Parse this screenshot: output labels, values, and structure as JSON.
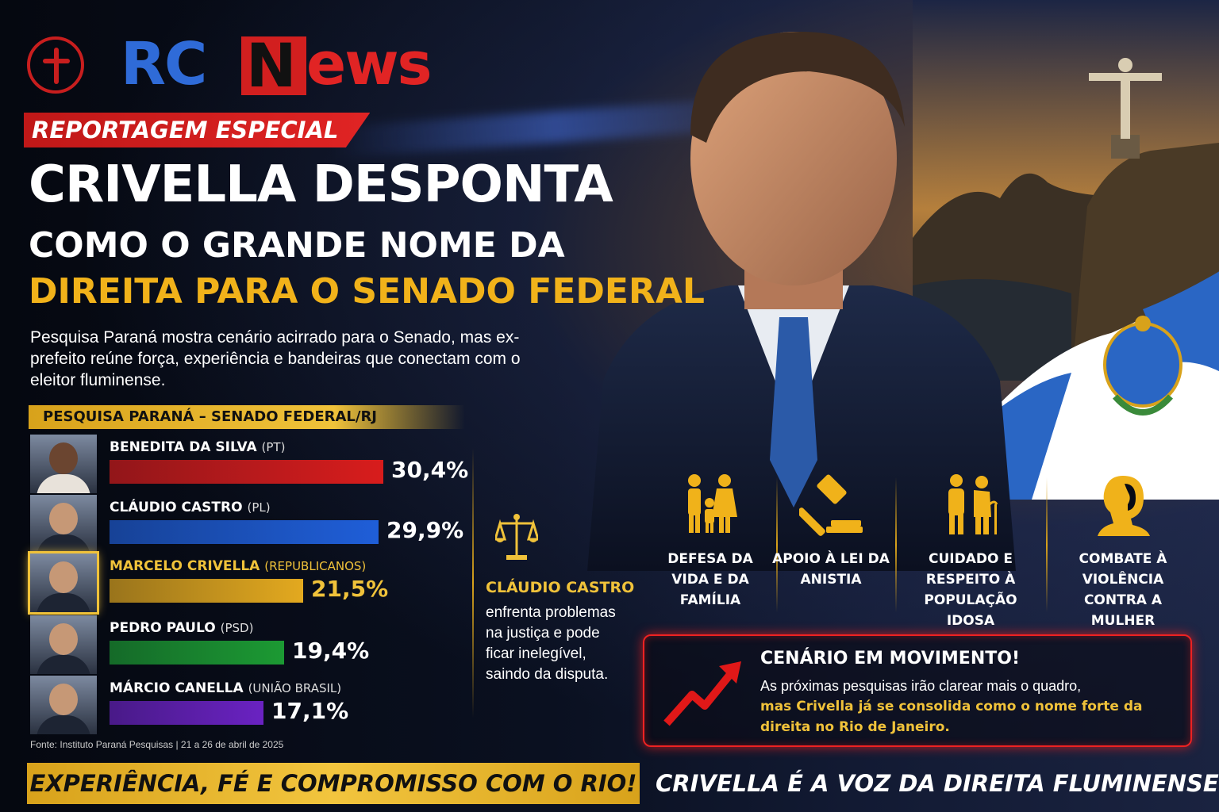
{
  "logo": {
    "rc": "RC",
    "n": "N",
    "ews": "ews"
  },
  "tagline": "REPORTAGEM ESPECIAL",
  "headline": {
    "line1": "CRIVELLA DESPONTA",
    "line2": "COMO O GRANDE NOME DA",
    "line3": "DIREITA PARA O SENADO FEDERAL"
  },
  "subtitle": "Pesquisa Paraná mostra cenário acirrado para o Senado, mas ex-prefeito reúne força, experiência e bandeiras que conectam com o eleitor fluminense.",
  "poll": {
    "header": "PESQUISA PARANÁ – SENADO FEDERAL/RJ",
    "candidates": [
      {
        "name": "BENEDITA DA SILVA",
        "party": "(PT)",
        "value": 30.4,
        "label": "30,4%",
        "color": "#d81c1c"
      },
      {
        "name": "CLÁUDIO CASTRO",
        "party": "(PL)",
        "value": 29.9,
        "label": "29,9%",
        "color": "#1f5ed8"
      },
      {
        "name": "MARCELO CRIVELLA",
        "party": "(REPUBLICANOS)",
        "value": 21.5,
        "label": "21,5%",
        "color": "#e3a91f"
      },
      {
        "name": "PEDRO PAULO",
        "party": "(PSD)",
        "value": 19.4,
        "label": "19,4%",
        "color": "#1c9a33"
      },
      {
        "name": "MÁRCIO CANELLA",
        "party": "(UNIÃO BRASIL)",
        "value": 17.1,
        "label": "17,1%",
        "color": "#6a22c2"
      }
    ],
    "source": "Fonte: Instituto Paraná Pesquisas | 21 a 26 de abril de 2025"
  },
  "castro_note": {
    "icon": "scale-of-justice-icon",
    "title": "CLÁUDIO CASTRO",
    "body": "enfrenta problemas na justiça e pode ficar inelegível, saindo da disputa."
  },
  "pillars": [
    {
      "icon": "family-icon",
      "label": "DEFESA DA VIDA E DA FAMÍLIA"
    },
    {
      "icon": "gavel-icon",
      "label": "APOIO À LEI DA ANISTIA"
    },
    {
      "icon": "elderly-couple-icon",
      "label": "CUIDADO E RESPEITO À POPULAÇÃO IDOSA"
    },
    {
      "icon": "woman-profile-icon",
      "label": "COMBATE À VIOLÊNCIA CONTRA A MULHER"
    }
  ],
  "scenario": {
    "title": "CENÁRIO EM MOVIMENTO!",
    "body1": "As próximas pesquisas irão clarear mais o quadro,",
    "body2": "mas Crivella já se consolida como o nome forte da direita no Rio de Janeiro."
  },
  "footer": {
    "left": "EXPERIÊNCIA, FÉ E COMPROMISSO COM O RIO!",
    "right": "CRIVELLA É A VOZ DA DIREITA FLUMINENSE."
  },
  "colors": {
    "gold": "#f0c23a",
    "red": "#e12424",
    "blue": "#2f6bd8"
  }
}
